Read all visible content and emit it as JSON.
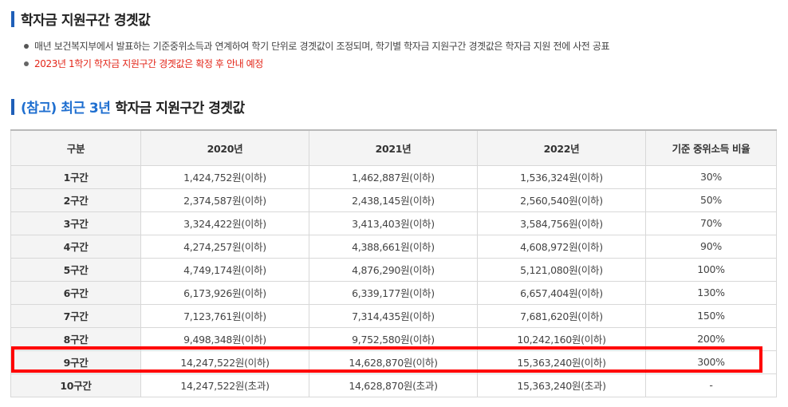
{
  "section1": {
    "title": "학자금 지원구간 경곗값",
    "notes": [
      "매년 보건복지부에서 발표하는 기준중위소득과 연계하여 학기 단위로 경곗값이 조정되며, 학기별 학자금 지원구간 경곗값은 학자금 지원 전에 사전 공표",
      "2023년 1학기 학자금 지원구간 경곗값은 확정 후 안내 예정"
    ]
  },
  "section2": {
    "title_accent": "(참고) 최근 3년",
    "title_rest": "학자금 지원구간 경곗값"
  },
  "table": {
    "headers": [
      "구분",
      "2020년",
      "2021년",
      "2022년",
      "기준 중위소득 비율"
    ],
    "rows": [
      [
        "1구간",
        "1,424,752원(이하)",
        "1,462,887원(이하)",
        "1,536,324원(이하)",
        "30%"
      ],
      [
        "2구간",
        "2,374,587원(이하)",
        "2,438,145원(이하)",
        "2,560,540원(이하)",
        "50%"
      ],
      [
        "3구간",
        "3,324,422원(이하)",
        "3,413,403원(이하)",
        "3,584,756원(이하)",
        "70%"
      ],
      [
        "4구간",
        "4,274,257원(이하)",
        "4,388,661원(이하)",
        "4,608,972원(이하)",
        "90%"
      ],
      [
        "5구간",
        "4,749,174원(이하)",
        "4,876,290원(이하)",
        "5,121,080원(이하)",
        "100%"
      ],
      [
        "6구간",
        "6,173,926원(이하)",
        "6,339,177원(이하)",
        "6,657,404원(이하)",
        "130%"
      ],
      [
        "7구간",
        "7,123,761원(이하)",
        "7,314,435원(이하)",
        "7,681,620원(이하)",
        "150%"
      ],
      [
        "8구간",
        "9,498,348원(이하)",
        "9,752,580원(이하)",
        "10,242,160원(이하)",
        "200%"
      ],
      [
        "9구간",
        "14,247,522원(이하)",
        "14,628,870원(이하)",
        "15,363,240원(이하)",
        "300%"
      ],
      [
        "10구간",
        "14,247,522원(초과)",
        "14,628,870원(초과)",
        "15,363,240원(초과)",
        "-"
      ]
    ]
  },
  "colors": {
    "title_bar": "#1f5fb8",
    "accent_text": "#1f6fd0",
    "notice_red": "#e32619",
    "highlight_border": "#ff0000",
    "header_bg": "#f4f4f4"
  }
}
